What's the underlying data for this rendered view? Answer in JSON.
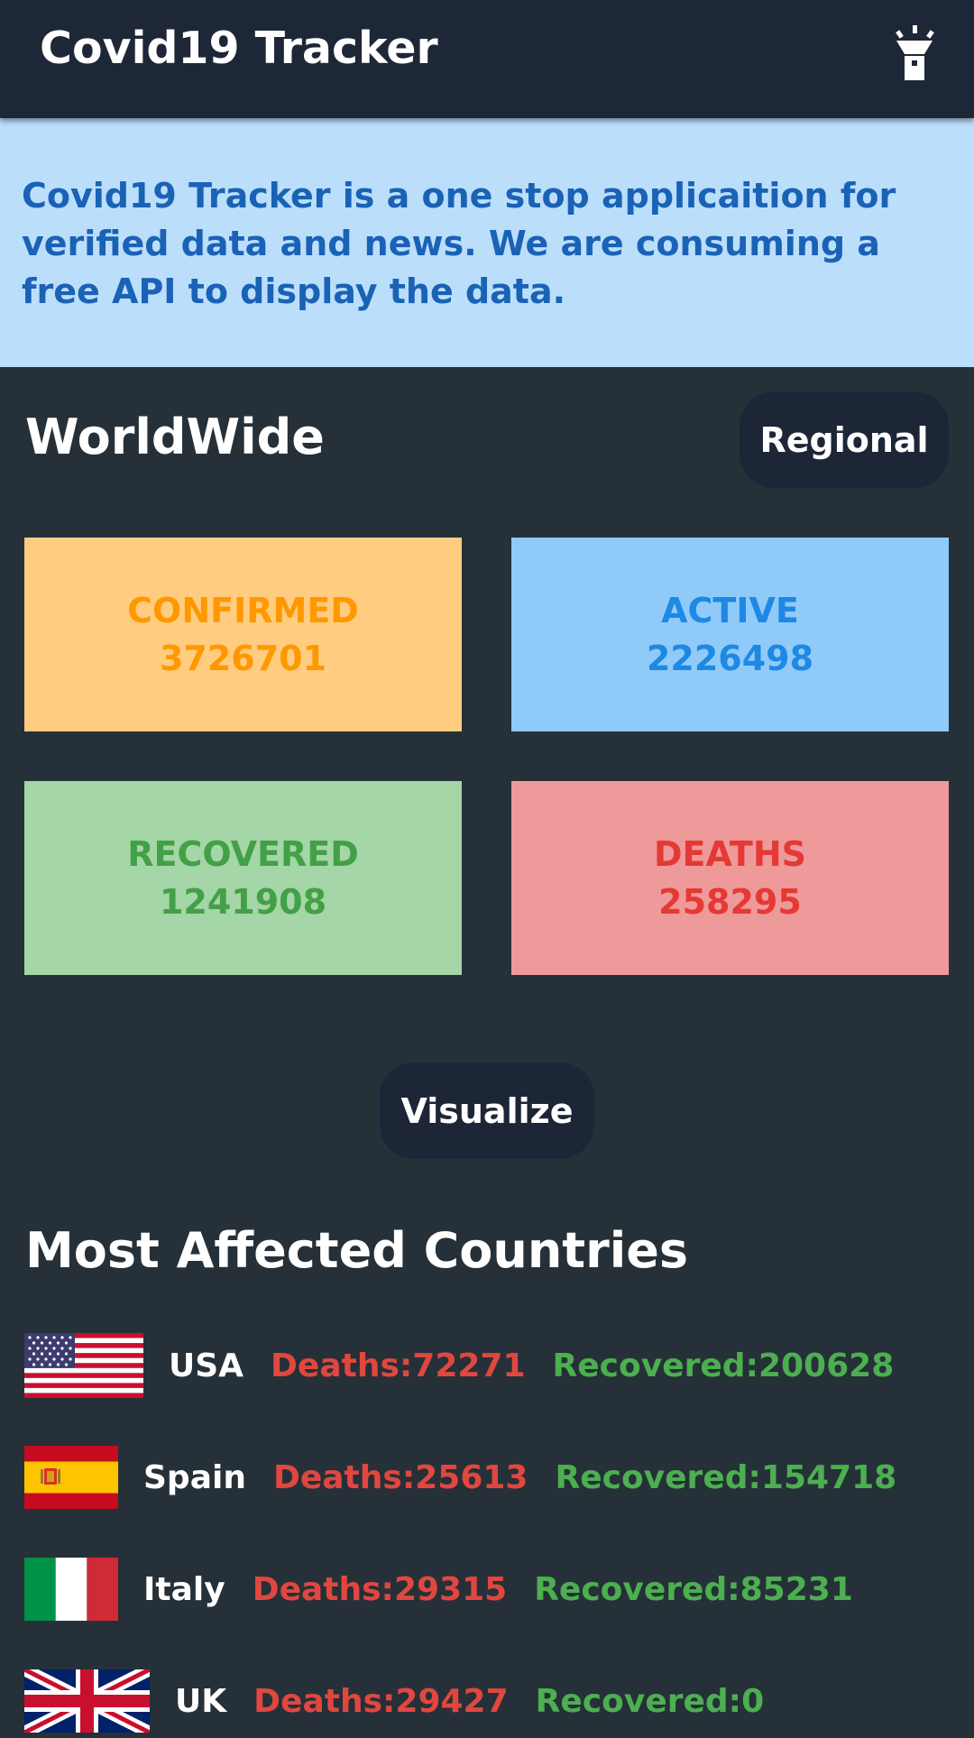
{
  "appbar": {
    "title": "Covid19 Tracker",
    "theme_icon": "flashlight-icon"
  },
  "banner": {
    "text": "Covid19 Tracker is a one stop applicaition for verified data and news. We are consuming a free API to display the data."
  },
  "worldwide": {
    "title": "WorldWide",
    "regional_label": "Regional",
    "cards": {
      "confirmed": {
        "label": "CONFIRMED",
        "value": "3726701"
      },
      "active": {
        "label": "ACTIVE",
        "value": "2226498"
      },
      "recovered": {
        "label": "RECOVERED",
        "value": "1241908"
      },
      "deaths": {
        "label": "DEATHS",
        "value": "258295"
      }
    },
    "visualize_label": "Visualize"
  },
  "colors": {
    "appbar": "#1e2737",
    "background": "#263038",
    "banner": "#bbdefb",
    "confirmed": "#ff9800",
    "active": "#1e88e5",
    "recovered": "#43a047",
    "deaths": "#e53935"
  },
  "most_affected": {
    "title": "Most Affected Countries",
    "countries": [
      {
        "name": "USA",
        "deaths": "Deaths:72271",
        "recovered": "Recovered:200628",
        "flag": "usa-flag"
      },
      {
        "name": "Spain",
        "deaths": "Deaths:25613",
        "recovered": "Recovered:154718",
        "flag": "spain-flag"
      },
      {
        "name": "Italy",
        "deaths": "Deaths:29315",
        "recovered": "Recovered:85231",
        "flag": "italy-flag"
      },
      {
        "name": "UK",
        "deaths": "Deaths:29427",
        "recovered": "Recovered:0",
        "flag": "uk-flag"
      }
    ]
  }
}
